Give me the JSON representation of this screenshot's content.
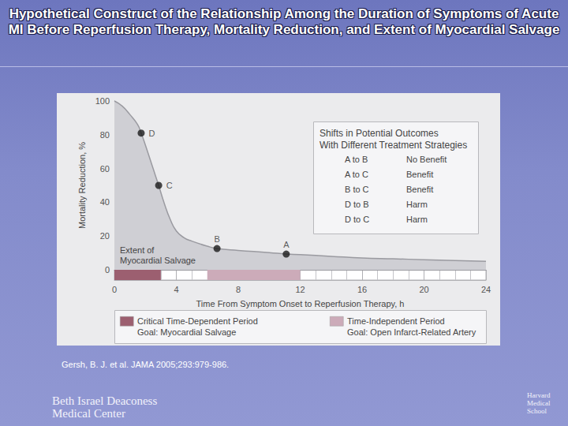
{
  "chart_data": {
    "type": "line",
    "title": "Hypothetical Construct of the Relationship Among the Duration of Symptoms of Acute MI Before Reperfusion Therapy, Mortality Reduction, and Extent of Myocardial Salvage",
    "xlabel": "Time From Symptom Onset to Reperfusion Therapy, h",
    "ylabel": "Mortality Reduction, %",
    "x": [
      0,
      0.5,
      1,
      1.5,
      1.73,
      2,
      2.5,
      2.86,
      3.2,
      3.6,
      4,
      4.5,
      5,
      6,
      6.63,
      8,
      10,
      11.1,
      12,
      14,
      16,
      18,
      20,
      22,
      24
    ],
    "values": [
      100,
      97,
      92,
      86,
      81,
      74,
      60,
      50,
      40,
      30,
      23,
      19,
      17,
      14,
      12.6,
      11.5,
      10.2,
      9.3,
      9,
      8,
      7,
      6.5,
      6,
      5.5,
      5
    ],
    "color": "#9a9aa0",
    "xlim": [
      0,
      24
    ],
    "xticks": [
      0,
      4,
      8,
      12,
      16,
      20,
      24
    ],
    "ylim": [
      0,
      100
    ],
    "yticks": [
      0,
      20,
      40,
      60,
      80,
      100
    ],
    "grid": false,
    "points": {
      "labels": [
        "D",
        "C",
        "B",
        "A"
      ],
      "x": [
        1.73,
        2.86,
        6.63,
        11.1
      ],
      "y": [
        81,
        50,
        12.6,
        9.3
      ],
      "color": "#1a1a1a",
      "marker": "circle"
    },
    "annotation": "Extent of\nMyocardial Salvage",
    "outcomes_table": {
      "title": "Shifts in Potential Outcomes\nWith Different Treatment Strategies",
      "rows": [
        [
          "A to B",
          "No Benefit"
        ],
        [
          "A to C",
          "Benefit"
        ],
        [
          "B to C",
          "Benefit"
        ],
        [
          "D to B",
          "Harm"
        ],
        [
          "D to C",
          "Harm"
        ]
      ]
    },
    "periods": [
      {
        "label": "Critical Time-Dependent Period",
        "goal": "Goal: Myocardial Salvage",
        "start": 0,
        "end": 3,
        "color": "#9c5f70"
      },
      {
        "label": "Time-Independent Period",
        "goal": "Goal: Open Infarct-Related Artery",
        "start": 6,
        "end": 12,
        "color": "#ccabb9"
      }
    ]
  },
  "citation": "Gersh, B. J. et al. JAMA 2005;293:979-986.",
  "footer": {
    "left": "Beth Israel Deaconess\nMedical Center",
    "right": "Harvard\nMedical\nSchool"
  }
}
